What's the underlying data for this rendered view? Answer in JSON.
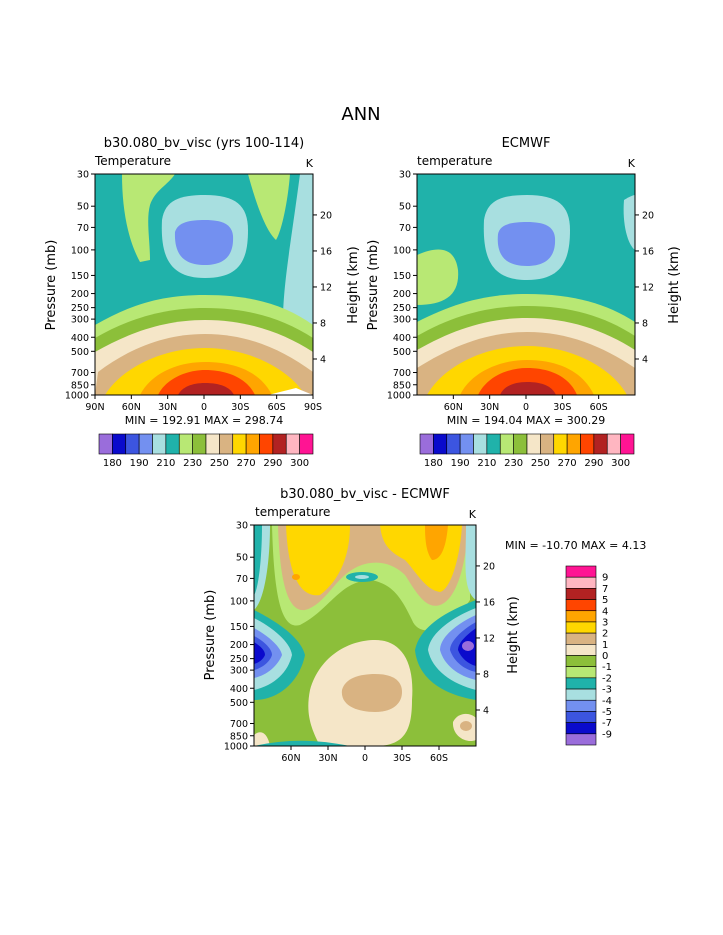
{
  "page_title": "ANN",
  "colors": {
    "temp_palette": [
      "#9a6ddb",
      "#0a0acc",
      "#3c55e0",
      "#7390f0",
      "#a8dfe0",
      "#20b2aa",
      "#b8e874",
      "#8cbf3a",
      "#f5e6c8",
      "#d9b382",
      "#ffd700",
      "#ffa500",
      "#ff4500",
      "#b22222",
      "#ffb6c1",
      "#ff1493"
    ],
    "diff_palette": [
      "#9a6ddb",
      "#0a0acc",
      "#3c55e0",
      "#7390f0",
      "#a8dfe0",
      "#20b2aa",
      "#b8e874",
      "#8cbf3a",
      "#f5e6c8",
      "#d9b382",
      "#ffd700",
      "#ffa500",
      "#ff4500",
      "#b22222",
      "#ffb6c1",
      "#ff1493"
    ]
  },
  "chart_data": [
    {
      "type": "heatmap",
      "title": "b30.080_bv_visc (yrs 100-114)",
      "left_label": "Temperature",
      "units": "K",
      "ylabel": "Pressure (mb)",
      "ylabel_right": "Height (km)",
      "pressure_ticks": [
        "30",
        "50",
        "70",
        "100",
        "150",
        "200",
        "250",
        "300",
        "400",
        "500",
        "700",
        "850",
        "1000"
      ],
      "height_ticks": [
        "20",
        "16",
        "12",
        "8",
        "4"
      ],
      "lat_ticks": [
        "90N",
        "60N",
        "30N",
        "0",
        "30S",
        "60S",
        "90S"
      ],
      "stats": "MIN = 192.91   MAX = 298.74",
      "colorbar_levels": [
        "180",
        "190",
        "210",
        "230",
        "250",
        "270",
        "290",
        "300"
      ],
      "log_pressure": true
    },
    {
      "type": "heatmap",
      "title": "ECMWF",
      "left_label": "temperature",
      "units": "K",
      "ylabel": "Pressure (mb)",
      "ylabel_right": "Height (km)",
      "pressure_ticks": [
        "30",
        "50",
        "70",
        "100",
        "150",
        "200",
        "250",
        "300",
        "400",
        "500",
        "700",
        "850",
        "1000"
      ],
      "height_ticks": [
        "20",
        "16",
        "12",
        "8",
        "4"
      ],
      "lat_ticks": [
        "60N",
        "30N",
        "0",
        "30S",
        "60S"
      ],
      "stats": "MIN = 194.04   MAX = 300.29",
      "colorbar_levels": [
        "180",
        "190",
        "210",
        "230",
        "250",
        "270",
        "290",
        "300"
      ],
      "log_pressure": true
    },
    {
      "type": "heatmap",
      "title": "b30.080_bv_visc - ECMWF",
      "left_label": "temperature",
      "units": "K",
      "ylabel": "Pressure (mb)",
      "ylabel_right": "Height (km)",
      "pressure_ticks": [
        "30",
        "50",
        "70",
        "100",
        "150",
        "200",
        "250",
        "300",
        "400",
        "500",
        "700",
        "850",
        "1000"
      ],
      "height_ticks": [
        "20",
        "16",
        "12",
        "8",
        "4"
      ],
      "lat_ticks": [
        "60N",
        "30N",
        "0",
        "30S",
        "60S"
      ],
      "stats": "MIN = -10.70   MAX =   4.13",
      "colorbar_levels": [
        "9",
        "7",
        "5",
        "4",
        "3",
        "2",
        "1",
        "0",
        "-1",
        "-2",
        "-3",
        "-4",
        "-5",
        "-7",
        "-9"
      ],
      "log_pressure": true
    }
  ]
}
